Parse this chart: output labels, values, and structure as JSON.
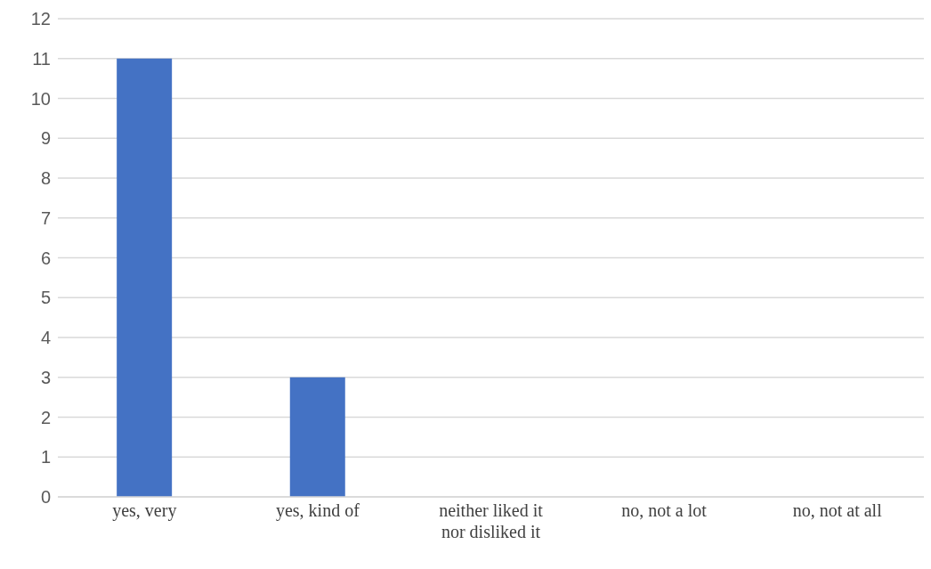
{
  "chart_data": {
    "type": "bar",
    "categories": [
      "yes, very",
      "yes, kind of",
      "neither liked it nor disliked it",
      "no, not a lot",
      "no, not at all"
    ],
    "values": [
      11,
      3,
      0,
      0,
      0
    ],
    "color": "#4472c4",
    "ylim": [
      0,
      12
    ],
    "yticks": [
      0,
      1,
      2,
      3,
      4,
      5,
      6,
      7,
      8,
      9,
      10,
      11,
      12
    ],
    "grid": "y"
  }
}
